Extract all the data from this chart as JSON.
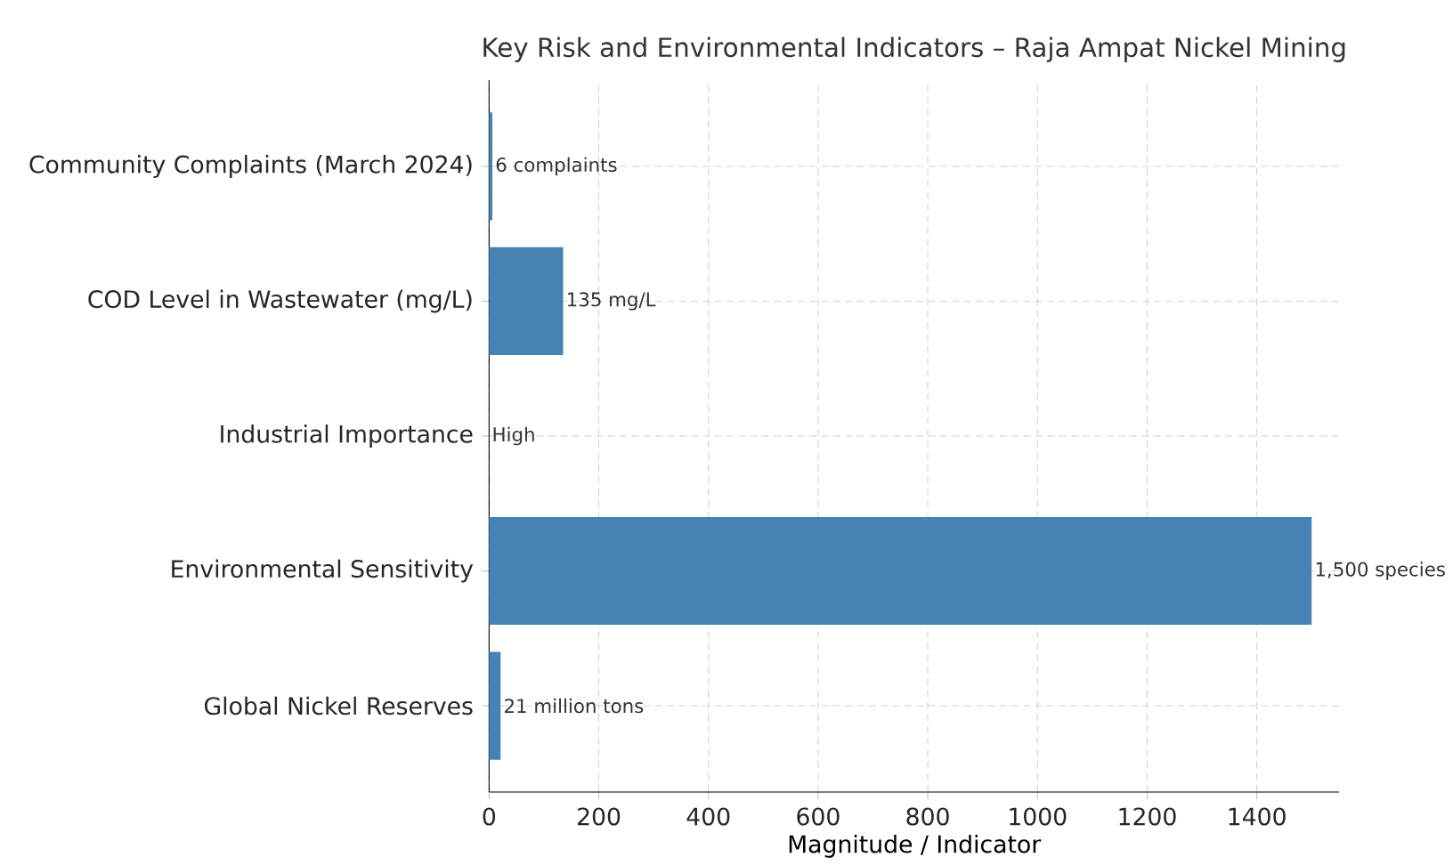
{
  "chart_data": {
    "type": "bar",
    "orientation": "horizontal",
    "title": "Key Risk and Environmental Indicators – Raja Ampat Nickel Mining",
    "xlabel": "Magnitude / Indicator",
    "categories": [
      "Community Complaints (March 2024)",
      "COD Level in Wastewater (mg/L)",
      "Industrial Importance",
      "Environmental Sensitivity",
      "Global Nickel Reserves"
    ],
    "values": [
      6,
      135,
      null,
      1500,
      21
    ],
    "value_labels": [
      "6 complaints",
      "135 mg/L",
      "High",
      "1,500 species",
      "21 million tons"
    ],
    "color": "#4682b4",
    "xlim": [
      0,
      1550
    ],
    "xticks": [
      0,
      200,
      400,
      600,
      800,
      1000,
      1200,
      1400
    ],
    "grid": true
  }
}
